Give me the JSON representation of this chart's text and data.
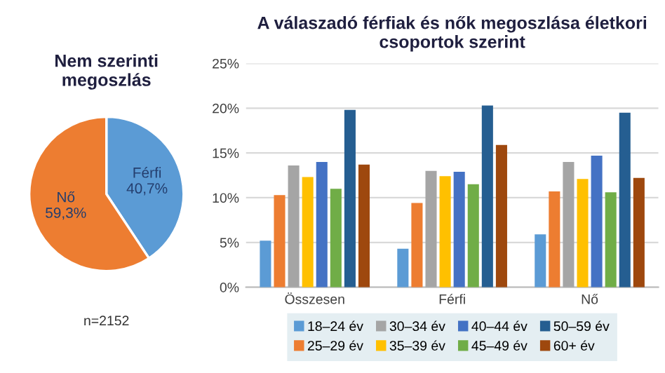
{
  "chart_data": [
    {
      "type": "pie",
      "title": "Nem szerinti\nmegoszlás",
      "categories": [
        "Férfi",
        "Nő"
      ],
      "values": [
        40.7,
        59.3
      ],
      "colors": [
        "#5b9bd5",
        "#ed7d31"
      ],
      "value_labels": [
        "40,7%",
        "59,3%"
      ],
      "annotations": [
        "n=2152"
      ]
    },
    {
      "type": "bar",
      "title": "A válaszadó férfiak és nők megoszlása életkori\ncsoportok szerint",
      "categories": [
        "Összesen",
        "Férfi",
        "Nő"
      ],
      "series": [
        {
          "name": "18–24 év",
          "color": "#5b9bd5",
          "values": [
            5.2,
            4.3,
            5.9
          ]
        },
        {
          "name": "25–29 év",
          "color": "#ed7d31",
          "values": [
            10.3,
            9.4,
            10.7
          ]
        },
        {
          "name": "30–34 év",
          "color": "#a5a5a5",
          "values": [
            13.6,
            13.0,
            14.0
          ]
        },
        {
          "name": "35–39 év",
          "color": "#ffc000",
          "values": [
            12.3,
            12.4,
            12.1
          ]
        },
        {
          "name": "40–44 év",
          "color": "#4472c4",
          "values": [
            14.0,
            12.9,
            14.7
          ]
        },
        {
          "name": "45–49 év",
          "color": "#70ad47",
          "values": [
            11.0,
            11.5,
            10.6
          ]
        },
        {
          "name": "50–59 év",
          "color": "#255e91",
          "values": [
            19.8,
            20.3,
            19.5
          ]
        },
        {
          "name": "60+ év",
          "color": "#9e480e",
          "values": [
            13.7,
            15.9,
            12.2
          ]
        }
      ],
      "ylim": [
        0,
        25
      ],
      "yticks": [
        {
          "value": 0,
          "label": "0%"
        },
        {
          "value": 5,
          "label": "5%"
        },
        {
          "value": 10,
          "label": "10%"
        },
        {
          "value": 15,
          "label": "15%"
        },
        {
          "value": 20,
          "label": "20%"
        },
        {
          "value": 25,
          "label": "25%"
        }
      ],
      "grid": "y",
      "legend": "bottom"
    }
  ]
}
